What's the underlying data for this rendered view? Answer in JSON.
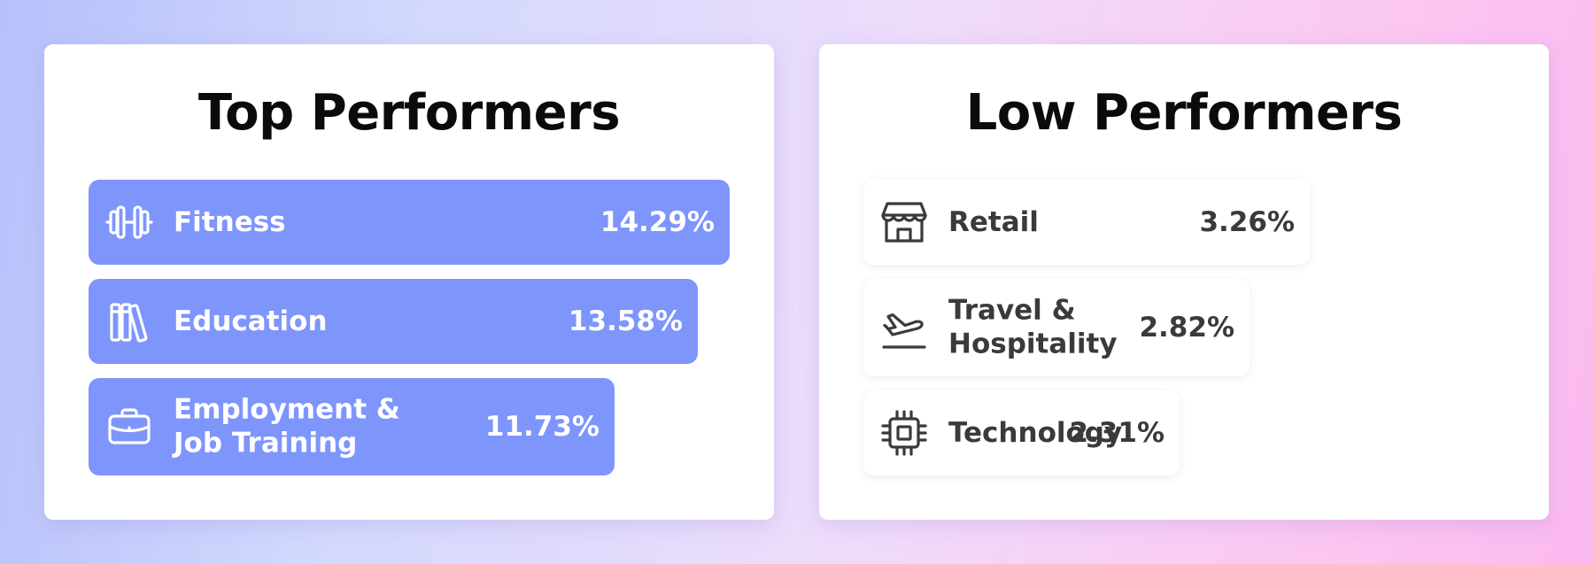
{
  "chart_data": [
    {
      "type": "bar",
      "orientation": "horizontal",
      "title": "Top Performers",
      "categories": [
        "Fitness",
        "Education",
        "Employment & Job Training"
      ],
      "category_lines": [
        [
          "Fitness"
        ],
        [
          "Education"
        ],
        [
          "Employment &",
          "Job Training"
        ]
      ],
      "values": [
        14.29,
        13.58,
        11.73
      ],
      "value_labels": [
        "14.29%",
        "13.58%",
        "11.73%"
      ],
      "icons": [
        "dumbbell-icon",
        "books-icon",
        "briefcase-icon"
      ],
      "bar_color": "#7e95fb",
      "text_color": "#ffffff"
    },
    {
      "type": "bar",
      "orientation": "horizontal",
      "title": "Low Performers",
      "categories": [
        "Retail",
        "Travel & Hospitality",
        "Technology"
      ],
      "category_lines": [
        [
          "Retail"
        ],
        [
          "Travel &",
          "Hospitality"
        ],
        [
          "Technology"
        ]
      ],
      "values": [
        3.26,
        2.82,
        2.31
      ],
      "value_labels": [
        "3.26%",
        "2.82%",
        "2.31%"
      ],
      "icons": [
        "storefront-icon",
        "plane-departure-icon",
        "cpu-chip-icon"
      ],
      "bar_color": "#ffffff",
      "text_color": "#3a3a3a"
    }
  ]
}
